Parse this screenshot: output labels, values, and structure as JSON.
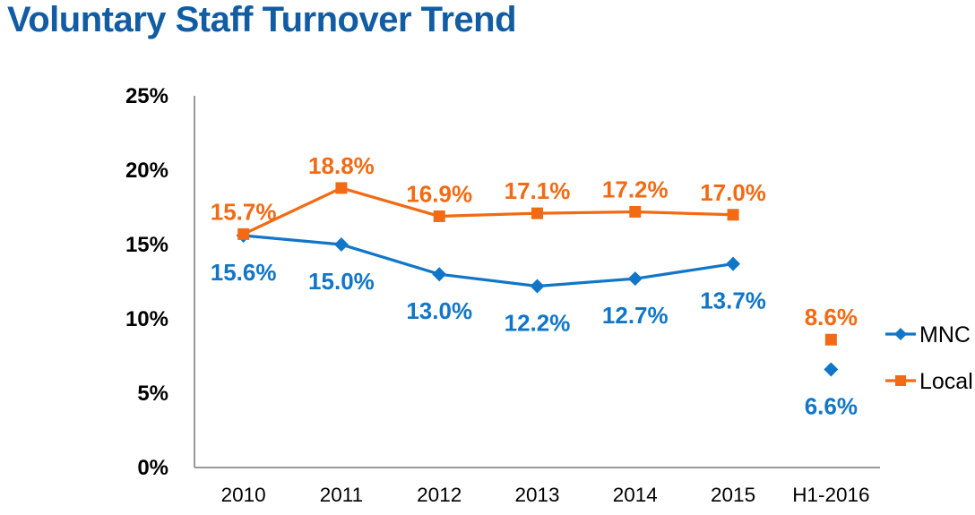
{
  "title": "Voluntary Staff Turnover Trend",
  "colors": {
    "title": "#115CA3",
    "mnc": "#1176C8",
    "local": "#F26A13",
    "axis": "#999999",
    "tick_text": "#000000",
    "legend_text": "#000000"
  },
  "chart_data": {
    "type": "line",
    "title": "Voluntary Staff Turnover Trend",
    "xlabel": "",
    "ylabel": "",
    "categories": [
      "2010",
      "2011",
      "2012",
      "2013",
      "2014",
      "2015",
      "H1-2016"
    ],
    "series": [
      {
        "name": "MNC",
        "values": [
          15.6,
          15.0,
          13.0,
          12.2,
          12.7,
          13.7,
          6.6
        ],
        "labels": [
          "15.6%",
          "15.0%",
          "13.0%",
          "12.2%",
          "12.7%",
          "13.7%",
          "6.6%"
        ],
        "color": "#1176C8",
        "marker": "diamond",
        "label_position": "below",
        "line_segment": [
          0,
          5
        ],
        "note": "H1-2016 point is not connected to the line"
      },
      {
        "name": "Local",
        "values": [
          15.7,
          18.8,
          16.9,
          17.1,
          17.2,
          17.0,
          8.6
        ],
        "labels": [
          "15.7%",
          "18.8%",
          "16.9%",
          "17.1%",
          "17.2%",
          "17.0%",
          "8.6%"
        ],
        "color": "#F26A13",
        "marker": "square",
        "label_position": "above",
        "line_segment": [
          0,
          5
        ],
        "note": "H1-2016 point is not connected to the line"
      }
    ],
    "ylim": [
      0,
      25
    ],
    "yticks": [
      0,
      5,
      10,
      15,
      20,
      25
    ],
    "ytick_labels": [
      "0%",
      "5%",
      "10%",
      "15%",
      "20%",
      "25%"
    ],
    "grid": false,
    "legend_position": "right",
    "legend_labels": [
      "MNC",
      "Local"
    ]
  }
}
